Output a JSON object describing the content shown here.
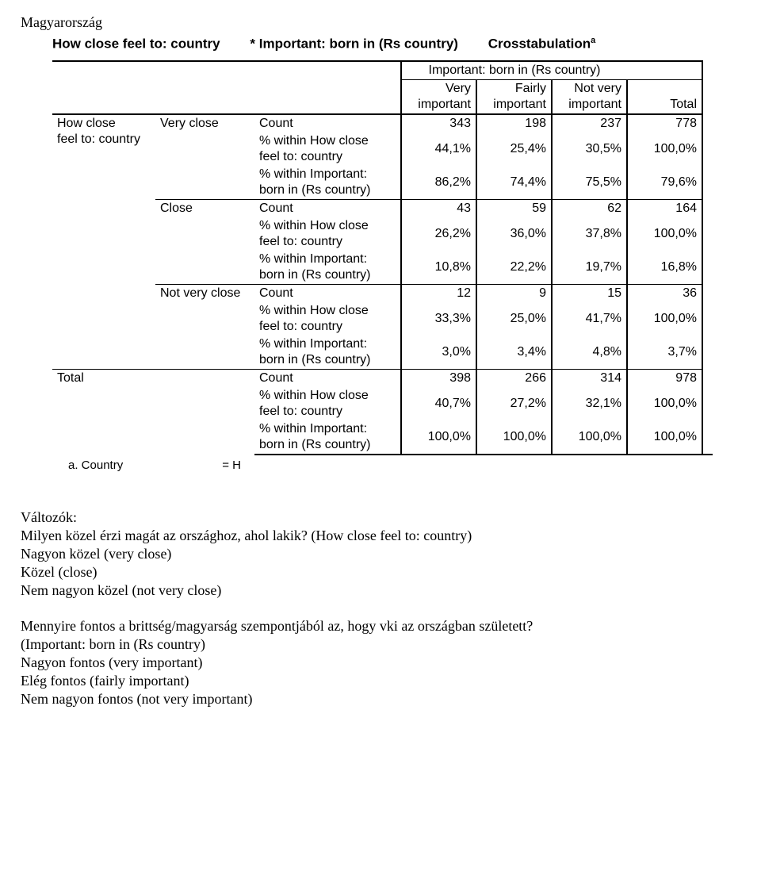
{
  "doc": {
    "country_label": "Magyarország",
    "title_left": "How close feel to: country",
    "title_mid": "* Important: born in (Rs country)",
    "title_right": "Crosstabulation",
    "title_sup": "a",
    "footnote": "a. Country",
    "footnote_val": "= H"
  },
  "header": {
    "group": "Important: born in (Rs country)",
    "col1a": "Very",
    "col1b": "important",
    "col2a": "Fairly",
    "col2b": "important",
    "col3a": "Not very",
    "col3b": "important",
    "total": "Total"
  },
  "rowgrp": {
    "main_a": "How close",
    "main_b": "feel to: country",
    "total": "Total",
    "r1": "Very close",
    "r2": "Close",
    "r3": "Not very close"
  },
  "measure": {
    "count": "Count",
    "pct_row_a": "% within How close",
    "pct_row_b": "feel to: country",
    "pct_col_a": "% within Important:",
    "pct_col_b": "born in (Rs country)"
  },
  "cells": {
    "r1": {
      "count": {
        "c1": "343",
        "c2": "198",
        "c3": "237",
        "t": "778"
      },
      "pct_row": {
        "c1": "44,1%",
        "c2": "25,4%",
        "c3": "30,5%",
        "t": "100,0%"
      },
      "pct_col": {
        "c1": "86,2%",
        "c2": "74,4%",
        "c3": "75,5%",
        "t": "79,6%"
      }
    },
    "r2": {
      "count": {
        "c1": "43",
        "c2": "59",
        "c3": "62",
        "t": "164"
      },
      "pct_row": {
        "c1": "26,2%",
        "c2": "36,0%",
        "c3": "37,8%",
        "t": "100,0%"
      },
      "pct_col": {
        "c1": "10,8%",
        "c2": "22,2%",
        "c3": "19,7%",
        "t": "16,8%"
      }
    },
    "r3": {
      "count": {
        "c1": "12",
        "c2": "9",
        "c3": "15",
        "t": "36"
      },
      "pct_row": {
        "c1": "33,3%",
        "c2": "25,0%",
        "c3": "41,7%",
        "t": "100,0%"
      },
      "pct_col": {
        "c1": "3,0%",
        "c2": "3,4%",
        "c3": "4,8%",
        "t": "3,7%"
      }
    },
    "total": {
      "count": {
        "c1": "398",
        "c2": "266",
        "c3": "314",
        "t": "978"
      },
      "pct_row": {
        "c1": "40,7%",
        "c2": "27,2%",
        "c3": "32,1%",
        "t": "100,0%"
      },
      "pct_col": {
        "c1": "100,0%",
        "c2": "100,0%",
        "c3": "100,0%",
        "t": "100,0%"
      }
    }
  },
  "notes": {
    "vars": "Változók:",
    "q1": "Milyen közel érzi magát az országhoz, ahol lakik? (How close feel to: country)",
    "a11": "Nagyon közel (very close)",
    "a12": "Közel (close)",
    "a13": "Nem nagyon közel (not very close)",
    "q2a": "Mennyire fontos a brittség/magyarság szempontjából az, hogy vki az országban született?",
    "q2b": "(Important: born in (Rs country)",
    "a21": "Nagyon fontos (very important)",
    "a22": "Elég fontos (fairly important)",
    "a23": "Nem nagyon fontos (not very important)"
  }
}
